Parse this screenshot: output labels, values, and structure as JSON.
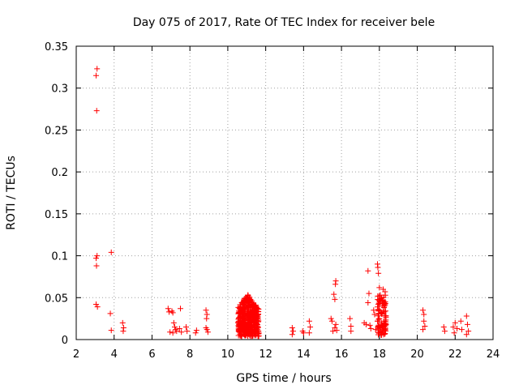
{
  "chart_data": {
    "type": "scatter",
    "title": "Day 075 of 2017, Rate Of TEC Index for receiver bele",
    "xlabel": "GPS time / hours",
    "ylabel": "ROTI / TECUs",
    "xlim": [
      2,
      24
    ],
    "ylim": [
      0,
      0.35
    ],
    "xticks": [
      "2",
      "4",
      "6",
      "8",
      "10",
      "12",
      "14",
      "16",
      "18",
      "20",
      "22",
      "24"
    ],
    "yticks": [
      "0",
      "0.05",
      "0.1",
      "0.15",
      "0.2",
      "0.25",
      "0.3",
      "0.35"
    ],
    "grid": true,
    "marker": "plus",
    "color": "#ff0000",
    "points": [
      [
        3.1,
        0.323
      ],
      [
        3.05,
        0.315
      ],
      [
        3.08,
        0.273
      ],
      [
        3.1,
        0.1
      ],
      [
        3.05,
        0.097
      ],
      [
        3.07,
        0.088
      ],
      [
        3.05,
        0.042
      ],
      [
        3.12,
        0.039
      ],
      [
        3.85,
        0.104
      ],
      [
        3.8,
        0.031
      ],
      [
        3.85,
        0.011
      ],
      [
        4.45,
        0.02
      ],
      [
        4.5,
        0.014
      ],
      [
        4.48,
        0.01
      ],
      [
        6.85,
        0.037
      ],
      [
        6.9,
        0.033
      ],
      [
        6.95,
        0.009
      ],
      [
        7.05,
        0.034
      ],
      [
        7.1,
        0.032
      ],
      [
        7.15,
        0.02
      ],
      [
        7.2,
        0.015
      ],
      [
        7.25,
        0.012
      ],
      [
        7.1,
        0.008
      ],
      [
        7.3,
        0.01
      ],
      [
        7.5,
        0.037
      ],
      [
        7.45,
        0.013
      ],
      [
        7.55,
        0.009
      ],
      [
        7.8,
        0.015
      ],
      [
        7.85,
        0.01
      ],
      [
        8.3,
        0.008
      ],
      [
        8.35,
        0.011
      ],
      [
        8.85,
        0.035
      ],
      [
        8.9,
        0.03
      ],
      [
        8.88,
        0.025
      ],
      [
        8.9,
        0.012
      ],
      [
        8.95,
        0.009
      ],
      [
        8.85,
        0.014
      ],
      [
        10.6,
        0.031
      ],
      [
        10.7,
        0.027
      ],
      [
        10.75,
        0.022
      ],
      [
        10.8,
        0.017
      ],
      [
        10.85,
        0.012
      ],
      [
        10.9,
        0.035
      ],
      [
        10.95,
        0.044
      ],
      [
        11.0,
        0.049
      ],
      [
        11.05,
        0.039
      ],
      [
        11.1,
        0.032
      ],
      [
        11.15,
        0.026
      ],
      [
        11.2,
        0.02
      ],
      [
        11.25,
        0.045
      ],
      [
        11.3,
        0.041
      ],
      [
        11.35,
        0.029
      ],
      [
        11.4,
        0.023
      ],
      [
        11.45,
        0.017
      ],
      [
        11.5,
        0.012
      ],
      [
        11.55,
        0.037
      ],
      [
        11.6,
        0.027
      ],
      [
        11.0,
        0.008
      ],
      [
        11.2,
        0.007
      ],
      [
        10.65,
        0.009
      ],
      [
        11.45,
        0.008
      ],
      [
        13.4,
        0.014
      ],
      [
        13.45,
        0.01
      ],
      [
        13.4,
        0.006
      ],
      [
        13.95,
        0.01
      ],
      [
        14.0,
        0.008
      ],
      [
        14.3,
        0.022
      ],
      [
        14.35,
        0.015
      ],
      [
        14.3,
        0.008
      ],
      [
        15.45,
        0.025
      ],
      [
        15.5,
        0.022
      ],
      [
        15.6,
        0.054
      ],
      [
        15.65,
        0.048
      ],
      [
        15.7,
        0.07
      ],
      [
        15.68,
        0.066
      ],
      [
        15.7,
        0.018
      ],
      [
        15.65,
        0.014
      ],
      [
        15.75,
        0.011
      ],
      [
        15.55,
        0.01
      ],
      [
        16.45,
        0.025
      ],
      [
        16.5,
        0.016
      ],
      [
        16.5,
        0.01
      ],
      [
        17.2,
        0.02
      ],
      [
        17.3,
        0.018
      ],
      [
        17.4,
        0.082
      ],
      [
        17.45,
        0.055
      ],
      [
        17.4,
        0.044
      ],
      [
        17.5,
        0.017
      ],
      [
        17.55,
        0.013
      ],
      [
        17.7,
        0.035
      ],
      [
        17.75,
        0.03
      ],
      [
        17.8,
        0.012
      ],
      [
        17.9,
        0.09
      ],
      [
        17.92,
        0.086
      ],
      [
        17.95,
        0.079
      ],
      [
        18.0,
        0.062
      ],
      [
        18.05,
        0.053
      ],
      [
        17.95,
        0.036
      ],
      [
        18.0,
        0.025
      ],
      [
        18.1,
        0.02
      ],
      [
        18.15,
        0.015
      ],
      [
        18.2,
        0.01
      ],
      [
        18.2,
        0.06
      ],
      [
        18.3,
        0.057
      ],
      [
        18.25,
        0.022
      ],
      [
        18.3,
        0.013
      ],
      [
        18.35,
        0.018
      ],
      [
        20.3,
        0.035
      ],
      [
        20.35,
        0.03
      ],
      [
        20.35,
        0.022
      ],
      [
        20.4,
        0.016
      ],
      [
        20.3,
        0.012
      ],
      [
        21.4,
        0.015
      ],
      [
        21.45,
        0.01
      ],
      [
        21.9,
        0.015
      ],
      [
        21.95,
        0.008
      ],
      [
        22.0,
        0.02
      ],
      [
        22.1,
        0.013
      ],
      [
        22.3,
        0.022
      ],
      [
        22.35,
        0.012
      ],
      [
        22.6,
        0.028
      ],
      [
        22.65,
        0.018
      ],
      [
        22.7,
        0.01
      ],
      [
        22.6,
        0.006
      ]
    ]
  }
}
